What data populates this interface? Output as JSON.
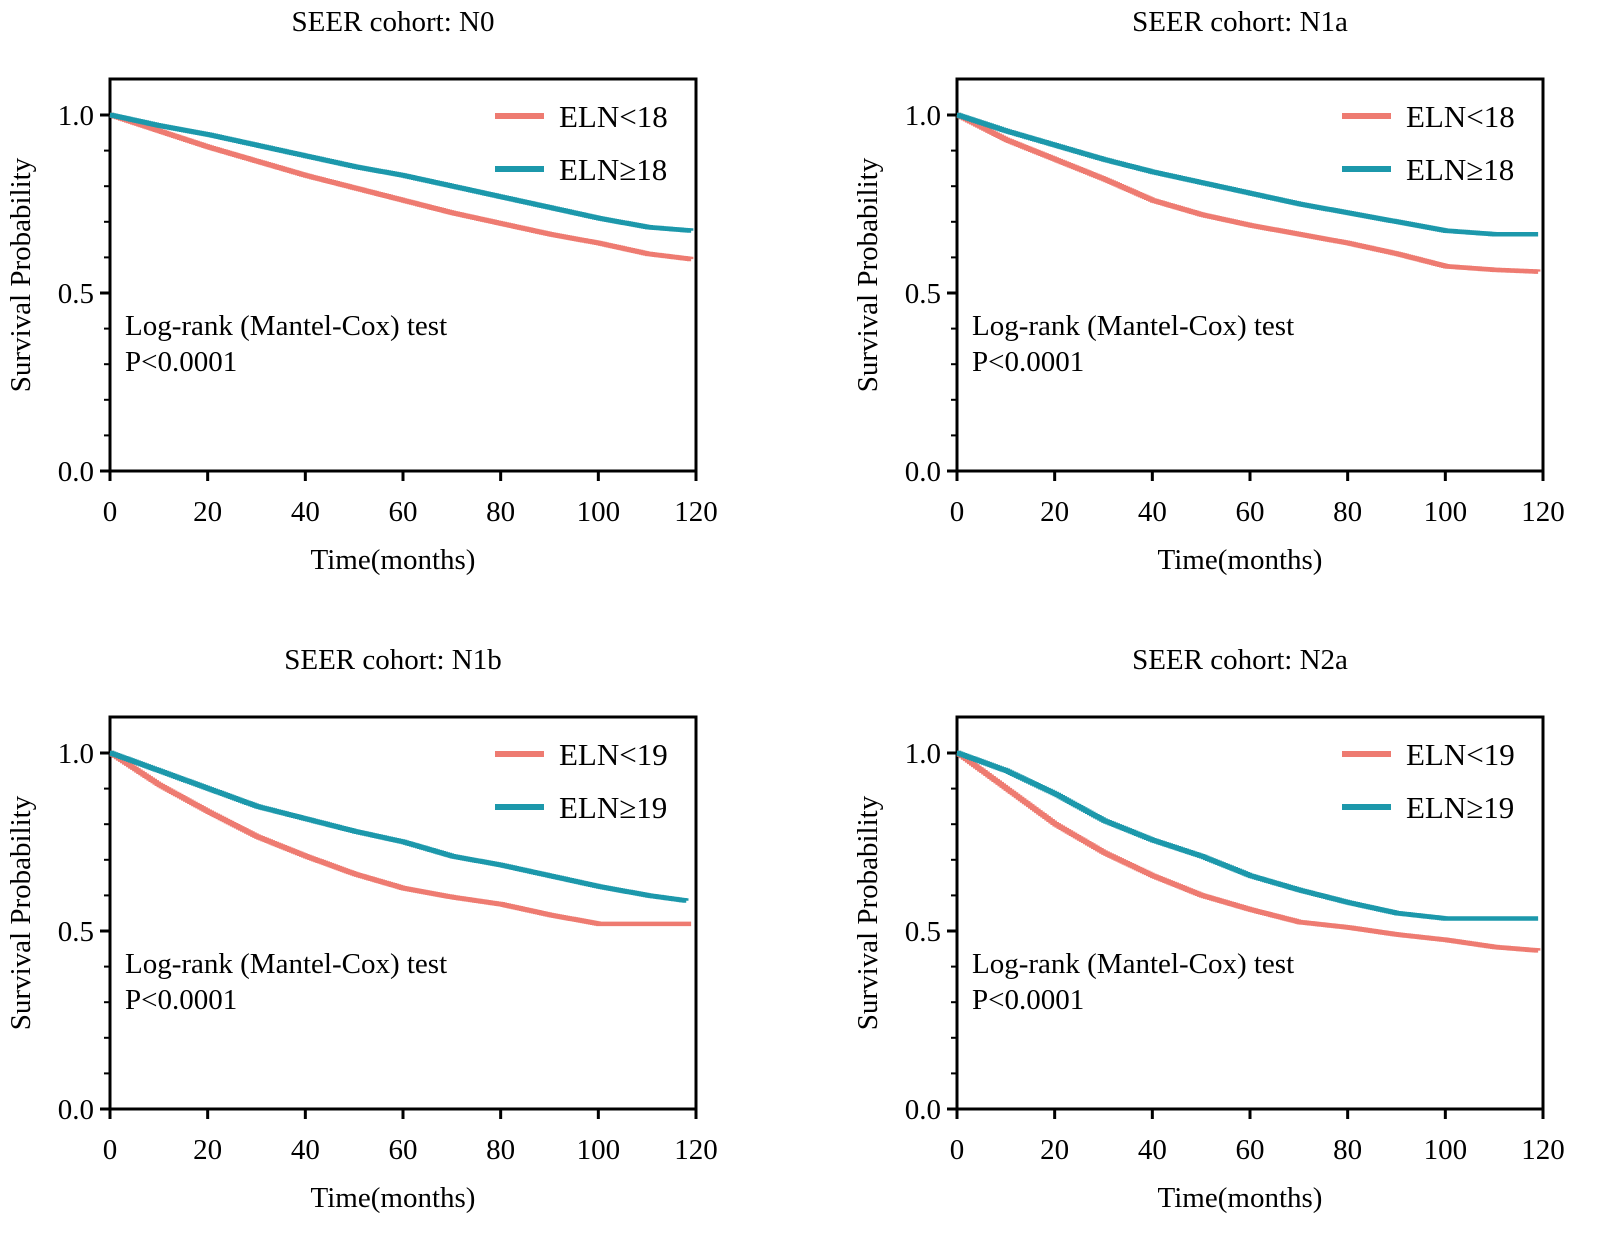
{
  "chart_data": [
    {
      "type": "line",
      "title": "SEER cohort: N0",
      "xlabel": "Time(months)",
      "ylabel": "Survival Probability",
      "xlim": [
        0,
        120
      ],
      "ylim": [
        0,
        1
      ],
      "xticks": [
        "0",
        "20",
        "40",
        "60",
        "80",
        "100",
        "120"
      ],
      "yticks": [
        "0.0",
        "0.5",
        "1.0"
      ],
      "grid": false,
      "legend_position": "top-right",
      "annotation": [
        "Log-rank (Mantel-Cox) test",
        "P<0.0001"
      ],
      "series": [
        {
          "name": "ELN<18",
          "color": "#ee7b71",
          "x": [
            0,
            10,
            20,
            30,
            40,
            50,
            60,
            70,
            80,
            90,
            100,
            110,
            119
          ],
          "y": [
            1.0,
            0.955,
            0.91,
            0.87,
            0.83,
            0.795,
            0.76,
            0.725,
            0.695,
            0.665,
            0.64,
            0.61,
            0.595
          ]
        },
        {
          "name": "ELN≥18",
          "color": "#1c98ab",
          "x": [
            0,
            10,
            20,
            30,
            40,
            50,
            60,
            70,
            80,
            90,
            100,
            110,
            119
          ],
          "y": [
            1.0,
            0.97,
            0.945,
            0.915,
            0.885,
            0.855,
            0.83,
            0.8,
            0.77,
            0.74,
            0.71,
            0.685,
            0.675
          ]
        }
      ]
    },
    {
      "type": "line",
      "title": "SEER cohort: N1a",
      "xlabel": "Time(months)",
      "ylabel": "Survival Probability",
      "xlim": [
        0,
        120
      ],
      "ylim": [
        0,
        1
      ],
      "xticks": [
        "0",
        "20",
        "40",
        "60",
        "80",
        "100",
        "120"
      ],
      "yticks": [
        "0.0",
        "0.5",
        "1.0"
      ],
      "grid": false,
      "legend_position": "top-right",
      "annotation": [
        "Log-rank (Mantel-Cox) test",
        "P<0.0001"
      ],
      "series": [
        {
          "name": "ELN<18",
          "color": "#ee7b71",
          "x": [
            0,
            10,
            20,
            30,
            40,
            50,
            60,
            70,
            80,
            90,
            100,
            110,
            119
          ],
          "y": [
            1.0,
            0.93,
            0.875,
            0.82,
            0.76,
            0.72,
            0.69,
            0.665,
            0.64,
            0.61,
            0.575,
            0.565,
            0.56
          ]
        },
        {
          "name": "ELN≥18",
          "color": "#1c98ab",
          "x": [
            0,
            10,
            20,
            30,
            40,
            50,
            60,
            70,
            80,
            90,
            100,
            110,
            119
          ],
          "y": [
            1.0,
            0.955,
            0.915,
            0.875,
            0.84,
            0.81,
            0.78,
            0.75,
            0.725,
            0.7,
            0.675,
            0.665,
            0.665
          ]
        }
      ]
    },
    {
      "type": "line",
      "title": "SEER cohort: N1b",
      "xlabel": "Time(months)",
      "ylabel": "Survival Probability",
      "xlim": [
        0,
        120
      ],
      "ylim": [
        0,
        1
      ],
      "xticks": [
        "0",
        "20",
        "40",
        "60",
        "80",
        "100",
        "120"
      ],
      "yticks": [
        "0.0",
        "0.5",
        "1.0"
      ],
      "grid": false,
      "legend_position": "top-right",
      "annotation": [
        "Log-rank (Mantel-Cox) test",
        "P<0.0001"
      ],
      "series": [
        {
          "name": "ELN<19",
          "color": "#ee7b71",
          "x": [
            0,
            10,
            20,
            30,
            40,
            50,
            60,
            70,
            80,
            90,
            100,
            110,
            119
          ],
          "y": [
            1.0,
            0.91,
            0.835,
            0.765,
            0.71,
            0.66,
            0.62,
            0.595,
            0.575,
            0.545,
            0.52,
            0.52,
            0.52
          ]
        },
        {
          "name": "ELN≥19",
          "color": "#1c98ab",
          "x": [
            0,
            10,
            20,
            30,
            40,
            50,
            60,
            70,
            80,
            90,
            100,
            110,
            118
          ],
          "y": [
            1.0,
            0.95,
            0.9,
            0.85,
            0.815,
            0.78,
            0.75,
            0.71,
            0.685,
            0.655,
            0.625,
            0.6,
            0.585
          ]
        }
      ]
    },
    {
      "type": "line",
      "title": "SEER cohort: N2a",
      "xlabel": "Time(months)",
      "ylabel": "Survival Probability",
      "xlim": [
        0,
        120
      ],
      "ylim": [
        0,
        1
      ],
      "xticks": [
        "0",
        "20",
        "40",
        "60",
        "80",
        "100",
        "120"
      ],
      "yticks": [
        "0.0",
        "0.5",
        "1.0"
      ],
      "grid": false,
      "legend_position": "top-right",
      "annotation": [
        "Log-rank (Mantel-Cox) test",
        "P<0.0001"
      ],
      "series": [
        {
          "name": "ELN<19",
          "color": "#ee7b71",
          "x": [
            0,
            10,
            20,
            30,
            40,
            50,
            60,
            70,
            80,
            90,
            100,
            110,
            119
          ],
          "y": [
            1.0,
            0.9,
            0.8,
            0.72,
            0.655,
            0.6,
            0.56,
            0.525,
            0.51,
            0.49,
            0.475,
            0.455,
            0.445
          ]
        },
        {
          "name": "ELN≥19",
          "color": "#1c98ab",
          "x": [
            0,
            10,
            20,
            30,
            40,
            50,
            60,
            70,
            80,
            90,
            100,
            110,
            119
          ],
          "y": [
            1.0,
            0.95,
            0.885,
            0.81,
            0.755,
            0.71,
            0.655,
            0.615,
            0.58,
            0.55,
            0.535,
            0.535,
            0.535
          ]
        }
      ]
    }
  ]
}
